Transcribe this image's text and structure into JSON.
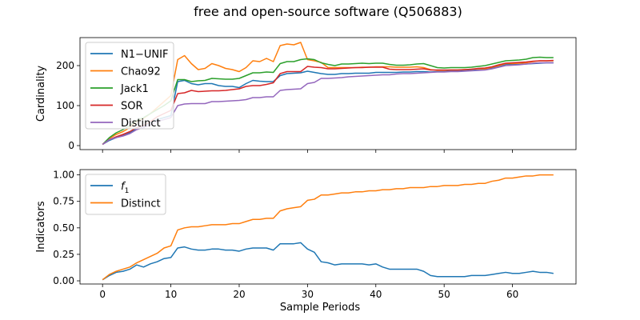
{
  "figure": {
    "title": "free and open-source software (Q506883)"
  },
  "colors": {
    "blue": "#1f77b4",
    "orange": "#ff7f0e",
    "green": "#2ca02c",
    "red": "#d62728",
    "purple": "#9467bd"
  },
  "chart_data": [
    {
      "type": "line",
      "title": "",
      "xlabel": "",
      "ylabel": "Cardinality",
      "xlim": [
        -3.3,
        69.3
      ],
      "ylim": [
        -10,
        270
      ],
      "xticks": [
        0,
        10,
        20,
        30,
        40,
        50,
        60
      ],
      "xtick_labels_shown": false,
      "yticks": [
        0,
        100,
        200
      ],
      "ytick_labels": [
        "0",
        "100",
        "200"
      ],
      "grid": false,
      "legend": "upper-left",
      "x": [
        0,
        1,
        2,
        3,
        4,
        5,
        6,
        7,
        8,
        9,
        10,
        11,
        12,
        13,
        14,
        15,
        16,
        17,
        18,
        19,
        20,
        21,
        22,
        23,
        24,
        25,
        26,
        27,
        28,
        29,
        30,
        31,
        32,
        33,
        34,
        35,
        36,
        37,
        38,
        39,
        40,
        41,
        42,
        43,
        44,
        45,
        46,
        47,
        48,
        49,
        50,
        51,
        52,
        53,
        54,
        55,
        56,
        57,
        58,
        59,
        60,
        61,
        62,
        63,
        64,
        65,
        66
      ],
      "series": [
        {
          "name": "N1−UNIF",
          "color": "blue",
          "values": [
            3,
            13,
            20,
            27,
            32,
            43,
            48,
            57,
            65,
            70,
            75,
            160,
            163,
            155,
            152,
            155,
            155,
            150,
            148,
            148,
            145,
            155,
            163,
            161,
            160,
            160,
            175,
            180,
            181,
            182,
            186,
            183,
            180,
            178,
            178,
            180,
            180,
            181,
            181,
            181,
            183,
            183,
            183,
            183,
            184,
            184,
            185,
            185,
            184,
            185,
            185,
            186,
            186,
            187,
            188,
            189,
            190,
            194,
            198,
            203,
            203,
            203,
            204,
            205,
            206,
            207,
            207
          ]
        },
        {
          "name": "Chao92",
          "color": "orange",
          "values": [
            3,
            18,
            28,
            35,
            45,
            60,
            68,
            80,
            95,
            110,
            125,
            215,
            225,
            205,
            190,
            193,
            205,
            200,
            193,
            190,
            185,
            195,
            212,
            210,
            218,
            210,
            250,
            254,
            252,
            258,
            215,
            212,
            208,
            195,
            195,
            195,
            195,
            195,
            196,
            196,
            197,
            197,
            197,
            196,
            196,
            196,
            197,
            195,
            190,
            188,
            188,
            189,
            189,
            190,
            191,
            192,
            192,
            196,
            200,
            205,
            205,
            206,
            207,
            210,
            212,
            212,
            212
          ]
        },
        {
          "name": "Jack1",
          "color": "green",
          "values": [
            3,
            20,
            32,
            40,
            50,
            63,
            70,
            80,
            90,
            100,
            112,
            165,
            165,
            160,
            162,
            163,
            168,
            167,
            166,
            166,
            168,
            175,
            182,
            182,
            184,
            183,
            205,
            210,
            210,
            215,
            217,
            215,
            207,
            203,
            200,
            204,
            204,
            205,
            206,
            205,
            206,
            206,
            203,
            201,
            201,
            202,
            204,
            205,
            200,
            195,
            194,
            195,
            195,
            195,
            196,
            198,
            200,
            204,
            208,
            212,
            213,
            214,
            216,
            220,
            221,
            220,
            220
          ]
        },
        {
          "name": "SOR",
          "color": "red",
          "values": [
            3,
            15,
            22,
            28,
            35,
            45,
            50,
            60,
            72,
            80,
            88,
            130,
            132,
            138,
            135,
            136,
            137,
            137,
            138,
            140,
            142,
            148,
            150,
            150,
            153,
            157,
            180,
            185,
            185,
            185,
            198,
            196,
            195,
            192,
            192,
            193,
            194,
            195,
            195,
            196,
            196,
            196,
            191,
            190,
            190,
            190,
            191,
            192,
            189,
            189,
            189,
            189,
            189,
            190,
            191,
            193,
            194,
            197,
            202,
            206,
            207,
            208,
            209,
            211,
            212,
            212,
            213
          ]
        },
        {
          "name": "Distinct",
          "color": "purple",
          "values": [
            3,
            15,
            20,
            24,
            30,
            40,
            45,
            52,
            60,
            65,
            70,
            100,
            104,
            105,
            105,
            105,
            110,
            110,
            111,
            112,
            113,
            115,
            120,
            120,
            122,
            122,
            138,
            140,
            141,
            142,
            155,
            158,
            168,
            168,
            169,
            170,
            172,
            173,
            174,
            175,
            176,
            177,
            177,
            179,
            180,
            180,
            181,
            182,
            183,
            184,
            184,
            185,
            185,
            186,
            187,
            188,
            189,
            192,
            196,
            200,
            201,
            202,
            204,
            206,
            207,
            207,
            207
          ]
        }
      ]
    },
    {
      "type": "line",
      "title": "",
      "xlabel": "Sample Periods",
      "ylabel": "Indicators",
      "xlim": [
        -3.3,
        69.3
      ],
      "ylim": [
        -0.03,
        1.05
      ],
      "xticks": [
        0,
        10,
        20,
        30,
        40,
        50,
        60
      ],
      "xtick_labels": [
        "0",
        "10",
        "20",
        "30",
        "40",
        "50",
        "60"
      ],
      "yticks": [
        0,
        0.25,
        0.5,
        0.75,
        1.0
      ],
      "ytick_labels": [
        "0.00",
        "0.25",
        "0.50",
        "0.75",
        "1.00"
      ],
      "grid": false,
      "legend": "upper-left",
      "x": [
        0,
        1,
        2,
        3,
        4,
        5,
        6,
        7,
        8,
        9,
        10,
        11,
        12,
        13,
        14,
        15,
        16,
        17,
        18,
        19,
        20,
        21,
        22,
        23,
        24,
        25,
        26,
        27,
        28,
        29,
        30,
        31,
        32,
        33,
        34,
        35,
        36,
        37,
        38,
        39,
        40,
        41,
        42,
        43,
        44,
        45,
        46,
        47,
        48,
        49,
        50,
        51,
        52,
        53,
        54,
        55,
        56,
        57,
        58,
        59,
        60,
        61,
        62,
        63,
        64,
        65,
        66
      ],
      "series": [
        {
          "name": "f1",
          "color": "blue",
          "values": [
            0.01,
            0.05,
            0.08,
            0.09,
            0.11,
            0.15,
            0.13,
            0.16,
            0.18,
            0.21,
            0.22,
            0.31,
            0.32,
            0.3,
            0.29,
            0.29,
            0.3,
            0.3,
            0.29,
            0.29,
            0.28,
            0.3,
            0.31,
            0.31,
            0.31,
            0.29,
            0.35,
            0.35,
            0.35,
            0.36,
            0.3,
            0.27,
            0.18,
            0.17,
            0.15,
            0.16,
            0.16,
            0.16,
            0.16,
            0.15,
            0.16,
            0.13,
            0.11,
            0.11,
            0.11,
            0.11,
            0.11,
            0.09,
            0.05,
            0.04,
            0.04,
            0.04,
            0.04,
            0.04,
            0.05,
            0.05,
            0.05,
            0.06,
            0.07,
            0.08,
            0.07,
            0.07,
            0.08,
            0.09,
            0.08,
            0.08,
            0.07
          ]
        },
        {
          "name": "Distinct",
          "color": "orange",
          "values": [
            0.01,
            0.06,
            0.09,
            0.11,
            0.13,
            0.17,
            0.2,
            0.23,
            0.26,
            0.31,
            0.33,
            0.48,
            0.5,
            0.51,
            0.51,
            0.52,
            0.53,
            0.53,
            0.53,
            0.54,
            0.54,
            0.56,
            0.58,
            0.58,
            0.59,
            0.59,
            0.66,
            0.68,
            0.69,
            0.7,
            0.76,
            0.77,
            0.81,
            0.81,
            0.82,
            0.83,
            0.83,
            0.84,
            0.84,
            0.85,
            0.85,
            0.86,
            0.86,
            0.87,
            0.87,
            0.88,
            0.88,
            0.88,
            0.89,
            0.89,
            0.9,
            0.9,
            0.9,
            0.91,
            0.91,
            0.92,
            0.92,
            0.94,
            0.95,
            0.97,
            0.97,
            0.98,
            0.99,
            0.99,
            1.0,
            1.0,
            1.0
          ]
        }
      ]
    }
  ]
}
